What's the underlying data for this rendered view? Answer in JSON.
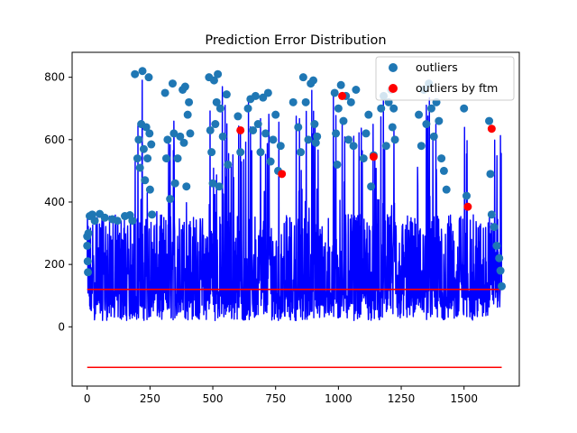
{
  "chart_data": {
    "type": "line",
    "title": "Prediction Error Distribution",
    "xlabel": "",
    "ylabel": "",
    "xlim": [
      -60,
      1720
    ],
    "ylim": [
      -190,
      880
    ],
    "xticks": [
      0,
      250,
      500,
      750,
      1000,
      1250,
      1500
    ],
    "yticks": [
      0,
      200,
      400,
      600,
      800
    ],
    "x_tick_labels": [
      "0",
      "250",
      "500",
      "750",
      "1000",
      "1250",
      "1500"
    ],
    "y_tick_labels": [
      "0",
      "200",
      "400",
      "600",
      "800"
    ],
    "grid": false,
    "legend_position": "top-right",
    "legend": [
      {
        "label": "outliers",
        "color": "#1f77b4",
        "marker": "circle"
      },
      {
        "label": "outliers by ftm",
        "color": "#ff0000",
        "marker": "circle"
      }
    ],
    "error_series": {
      "color": "#0000ff",
      "x_range": [
        0,
        1650
      ],
      "regions": [
        {
          "x": [
            0,
            190
          ],
          "low": 20,
          "high": 360
        },
        {
          "x": [
            190,
            260
          ],
          "low": 20,
          "high": 820
        },
        {
          "x": [
            260,
            320
          ],
          "low": 20,
          "high": 370
        },
        {
          "x": [
            320,
            420
          ],
          "low": 20,
          "high": 780
        },
        {
          "x": [
            420,
            480
          ],
          "low": 20,
          "high": 360
        },
        {
          "x": [
            480,
            560
          ],
          "low": 20,
          "high": 815
        },
        {
          "x": [
            560,
            640
          ],
          "low": 20,
          "high": 680
        },
        {
          "x": [
            640,
            780
          ],
          "low": 20,
          "high": 750
        },
        {
          "x": [
            780,
            830
          ],
          "low": 20,
          "high": 360
        },
        {
          "x": [
            830,
            920
          ],
          "low": 20,
          "high": 800
        },
        {
          "x": [
            920,
            980
          ],
          "low": 20,
          "high": 360
        },
        {
          "x": [
            980,
            1080
          ],
          "low": 20,
          "high": 775
        },
        {
          "x": [
            1080,
            1170
          ],
          "low": 20,
          "high": 680
        },
        {
          "x": [
            1170,
            1230
          ],
          "low": 20,
          "high": 760
        },
        {
          "x": [
            1230,
            1310
          ],
          "low": 20,
          "high": 360
        },
        {
          "x": [
            1310,
            1400
          ],
          "low": 20,
          "high": 780
        },
        {
          "x": [
            1400,
            1440
          ],
          "low": 20,
          "high": 540
        },
        {
          "x": [
            1440,
            1500
          ],
          "low": 20,
          "high": 360
        },
        {
          "x": [
            1500,
            1530
          ],
          "low": 20,
          "high": 700
        },
        {
          "x": [
            1530,
            1600
          ],
          "low": 20,
          "high": 360
        },
        {
          "x": [
            1600,
            1650
          ],
          "low": 60,
          "high": 660
        }
      ]
    },
    "outliers": {
      "color": "#1f77b4",
      "points": [
        [
          0,
          290
        ],
        [
          0,
          260
        ],
        [
          2,
          210
        ],
        [
          3,
          175
        ],
        [
          5,
          300
        ],
        [
          10,
          355
        ],
        [
          20,
          360
        ],
        [
          30,
          340
        ],
        [
          50,
          362
        ],
        [
          70,
          350
        ],
        [
          100,
          345
        ],
        [
          120,
          340
        ],
        [
          150,
          355
        ],
        [
          170,
          358
        ],
        [
          180,
          340
        ],
        [
          190,
          810
        ],
        [
          200,
          540
        ],
        [
          205,
          600
        ],
        [
          210,
          510
        ],
        [
          215,
          650
        ],
        [
          220,
          820
        ],
        [
          225,
          570
        ],
        [
          230,
          470
        ],
        [
          235,
          640
        ],
        [
          240,
          540
        ],
        [
          245,
          800
        ],
        [
          248,
          620
        ],
        [
          250,
          440
        ],
        [
          255,
          585
        ],
        [
          258,
          360
        ],
        [
          310,
          750
        ],
        [
          315,
          540
        ],
        [
          320,
          600
        ],
        [
          330,
          410
        ],
        [
          340,
          780
        ],
        [
          345,
          620
        ],
        [
          350,
          460
        ],
        [
          360,
          540
        ],
        [
          370,
          610
        ],
        [
          380,
          760
        ],
        [
          385,
          590
        ],
        [
          390,
          770
        ],
        [
          395,
          450
        ],
        [
          400,
          680
        ],
        [
          405,
          720
        ],
        [
          410,
          620
        ],
        [
          485,
          800
        ],
        [
          490,
          630
        ],
        [
          495,
          560
        ],
        [
          500,
          460
        ],
        [
          505,
          790
        ],
        [
          510,
          650
        ],
        [
          515,
          720
        ],
        [
          520,
          810
        ],
        [
          525,
          450
        ],
        [
          530,
          700
        ],
        [
          540,
          610
        ],
        [
          555,
          745
        ],
        [
          560,
          520
        ],
        [
          600,
          675
        ],
        [
          610,
          560
        ],
        [
          640,
          700
        ],
        [
          650,
          730
        ],
        [
          660,
          630
        ],
        [
          670,
          740
        ],
        [
          680,
          650
        ],
        [
          690,
          560
        ],
        [
          700,
          735
        ],
        [
          710,
          620
        ],
        [
          720,
          750
        ],
        [
          730,
          530
        ],
        [
          740,
          600
        ],
        [
          750,
          680
        ],
        [
          760,
          500
        ],
        [
          770,
          580
        ],
        [
          820,
          720
        ],
        [
          840,
          640
        ],
        [
          850,
          560
        ],
        [
          860,
          800
        ],
        [
          870,
          720
        ],
        [
          880,
          600
        ],
        [
          890,
          780
        ],
        [
          900,
          790
        ],
        [
          905,
          650
        ],
        [
          910,
          590
        ],
        [
          915,
          610
        ],
        [
          985,
          750
        ],
        [
          990,
          620
        ],
        [
          995,
          520
        ],
        [
          1000,
          700
        ],
        [
          1010,
          775
        ],
        [
          1020,
          660
        ],
        [
          1030,
          740
        ],
        [
          1040,
          600
        ],
        [
          1050,
          720
        ],
        [
          1060,
          580
        ],
        [
          1070,
          760
        ],
        [
          1100,
          540
        ],
        [
          1110,
          620
        ],
        [
          1120,
          680
        ],
        [
          1130,
          450
        ],
        [
          1140,
          550
        ],
        [
          1170,
          700
        ],
        [
          1180,
          740
        ],
        [
          1190,
          580
        ],
        [
          1200,
          720
        ],
        [
          1210,
          760
        ],
        [
          1215,
          640
        ],
        [
          1220,
          700
        ],
        [
          1225,
          600
        ],
        [
          1320,
          680
        ],
        [
          1330,
          580
        ],
        [
          1340,
          760
        ],
        [
          1350,
          650
        ],
        [
          1360,
          780
        ],
        [
          1370,
          700
        ],
        [
          1380,
          610
        ],
        [
          1390,
          720
        ],
        [
          1400,
          660
        ],
        [
          1410,
          540
        ],
        [
          1420,
          500
        ],
        [
          1430,
          440
        ],
        [
          1500,
          700
        ],
        [
          1510,
          420
        ],
        [
          1600,
          660
        ],
        [
          1605,
          490
        ],
        [
          1610,
          360
        ],
        [
          1620,
          320
        ],
        [
          1630,
          260
        ],
        [
          1640,
          220
        ],
        [
          1645,
          180
        ],
        [
          1650,
          130
        ]
      ]
    },
    "outliers_by_ftm": {
      "color": "#ff0000",
      "points": [
        [
          610,
          630
        ],
        [
          775,
          490
        ],
        [
          1015,
          740
        ],
        [
          1140,
          545
        ],
        [
          1515,
          385
        ],
        [
          1610,
          635
        ]
      ]
    },
    "threshold_lines": {
      "color": "#ff0000",
      "upper": {
        "x": [
          0,
          1650
        ],
        "y": 120
      },
      "lower": {
        "x": [
          0,
          1650
        ],
        "y": -130
      }
    }
  }
}
